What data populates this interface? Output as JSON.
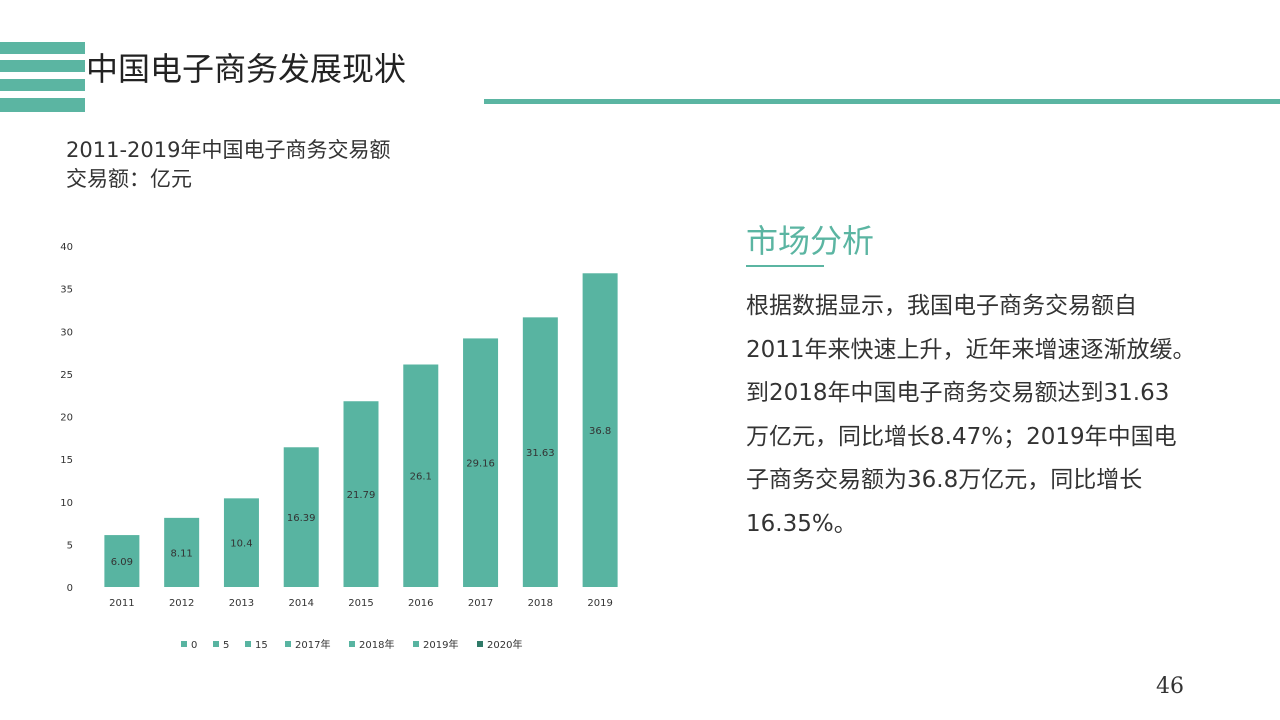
{
  "slide": {
    "title": "中国电子商务发展现状",
    "subtitle_line1": "2011-2019年中国电子商务交易额",
    "subtitle_line2": "交易额：亿元",
    "page_number": "46",
    "accent_color": "#5bb5a2"
  },
  "analysis": {
    "heading": "市场分析",
    "lines": [
      "根据数据显示，我国电子商务交易额自",
      "2011年来快速上升，近年来增速逐渐放缓。",
      "到2018年中国电子商务交易额达到31.63",
      "万亿元，同比增长8.47%；2019年中国电",
      "子商务交易额为36.8万亿元，同比增长",
      "16.35%。"
    ]
  },
  "chart_data": {
    "type": "bar",
    "categories": [
      "2011",
      "2012",
      "2013",
      "2014",
      "2015",
      "2016",
      "2017",
      "2018",
      "2019"
    ],
    "values": [
      6.09,
      8.11,
      10.4,
      16.39,
      21.79,
      26.1,
      29.16,
      31.63,
      36.8
    ],
    "data_labels": [
      "6.09",
      "8.11",
      "10.4",
      "16.39",
      "21.79",
      "26.1",
      "29.16",
      "31.63",
      "36.8"
    ],
    "ylim": [
      0,
      40
    ],
    "yticks": [
      "0",
      "5",
      "10",
      "15",
      "20",
      "25",
      "30",
      "35",
      "40"
    ],
    "grid": false,
    "bar_color": "#58b4a1",
    "legend_position": "bottom",
    "legend": [
      {
        "label": "0",
        "color": "#58b4a1"
      },
      {
        "label": "5",
        "color": "#58b4a1"
      },
      {
        "label": "15",
        "color": "#58b4a1"
      },
      {
        "label": "2017年",
        "color": "#58b4a1"
      },
      {
        "label": "2018年",
        "color": "#58b4a1"
      },
      {
        "label": "2019年",
        "color": "#58b4a1"
      },
      {
        "label": "2020年",
        "color": "#2f7a68"
      }
    ]
  }
}
